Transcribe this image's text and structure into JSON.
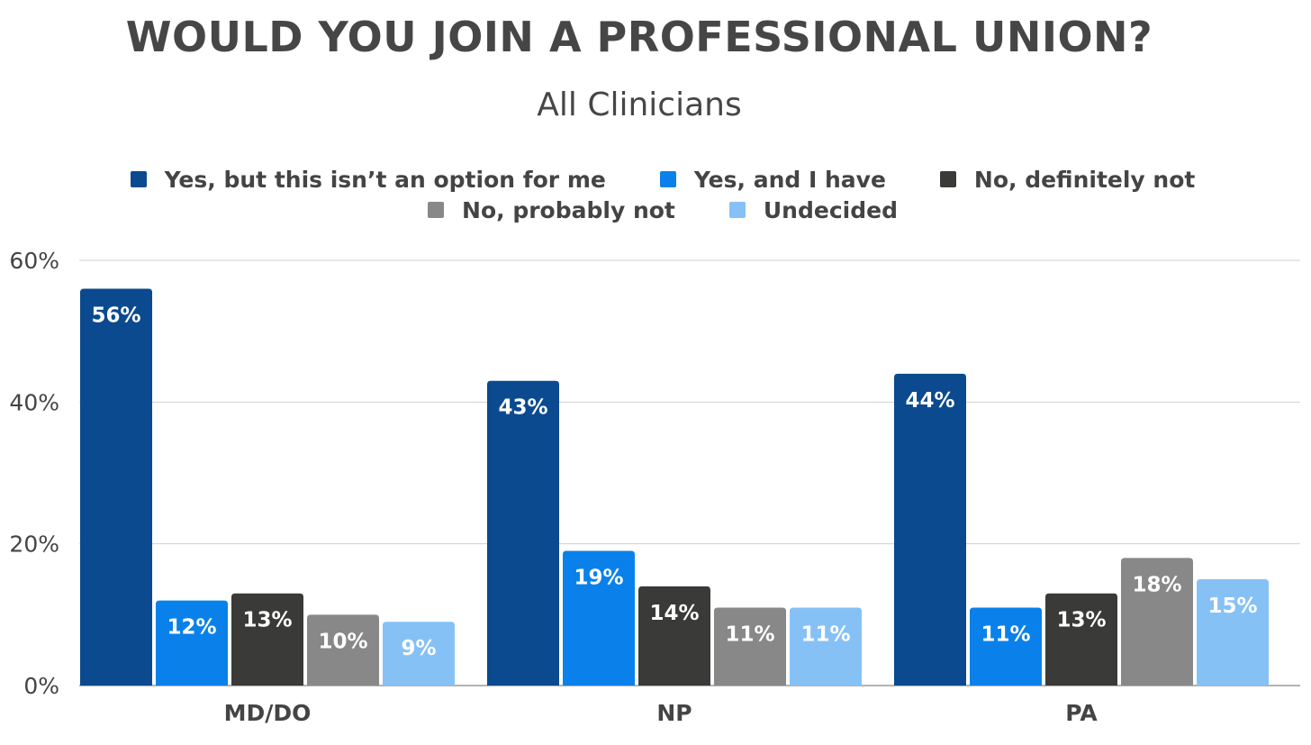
{
  "chart_data": {
    "type": "bar",
    "title": "WOULD YOU JOIN A PROFESSIONAL UNION?",
    "subtitle": "All Clinicians",
    "categories": [
      "MD/DO",
      "NP",
      "PA"
    ],
    "series": [
      {
        "name": "Yes, but this isn’t an option for me",
        "color": "#0b4a8f",
        "values": [
          56,
          43,
          44
        ],
        "labels": [
          "56%",
          "43%",
          "44%"
        ]
      },
      {
        "name": "Yes, and I have",
        "color": "#0a81ea",
        "values": [
          12,
          19,
          11
        ],
        "labels": [
          "12%",
          "19%",
          "11%"
        ]
      },
      {
        "name": "No, definitely not",
        "color": "#3a3a38",
        "values": [
          13,
          14,
          13
        ],
        "labels": [
          "13%",
          "14%",
          "13%"
        ]
      },
      {
        "name": "No, probably not",
        "color": "#888888",
        "values": [
          10,
          11,
          18
        ],
        "labels": [
          "10%",
          "11%",
          "18%"
        ]
      },
      {
        "name": "Undecided",
        "color": "#86c1f6",
        "values": [
          9,
          11,
          15
        ],
        "labels": [
          "9%",
          "11%",
          "15%"
        ]
      }
    ],
    "y_ticks": [
      0,
      20,
      40,
      60
    ],
    "y_tick_labels": [
      "0%",
      "20%",
      "40%",
      "60%"
    ],
    "ylim": [
      0,
      60
    ],
    "grid": true,
    "legend_position": "top",
    "xlabel": "",
    "ylabel": ""
  }
}
